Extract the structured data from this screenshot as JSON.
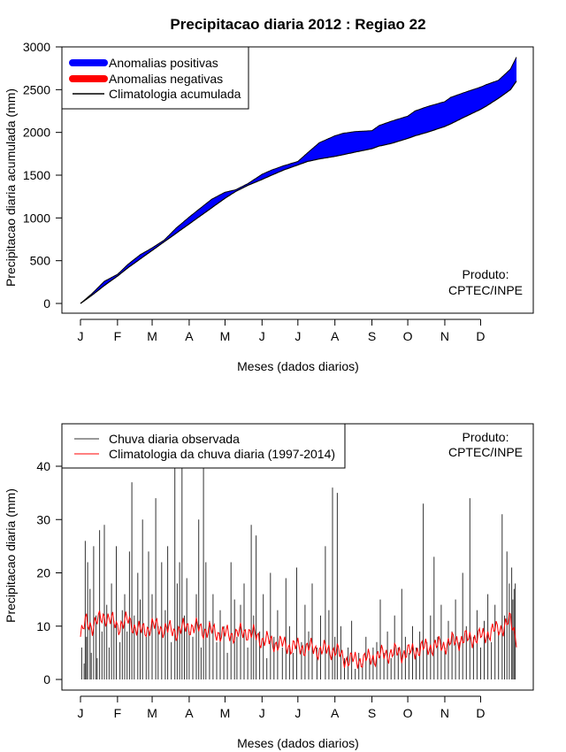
{
  "title": "Precipitacao diaria 2012 : Regiao 22",
  "chart_data": [
    {
      "type": "area",
      "name": "accumulated",
      "ylabel": "Precipitacao diaria acumulada (mm)",
      "xlabel": "Meses (dados diarios)",
      "ylim": [
        0,
        3000
      ],
      "yticks": [
        "0",
        "500",
        "1000",
        "1500",
        "2000",
        "2500",
        "3000"
      ],
      "months": [
        "J",
        "F",
        "M",
        "A",
        "M",
        "J",
        "J",
        "A",
        "S",
        "O",
        "N",
        "D"
      ],
      "legend": {
        "positive": "Anomalias positivas",
        "negative": "Anomalias negativas",
        "climatology": "Climatologia acumulada"
      },
      "product": [
        "Produto:",
        "CPTEC/INPE"
      ],
      "colors": {
        "positive": "#0000ff",
        "negative": "#ff0000",
        "climatology": "#000000"
      },
      "observed_accumulated": {
        "day": [
          0,
          10,
          20,
          31,
          40,
          50,
          60,
          70,
          80,
          91,
          100,
          110,
          121,
          130,
          140,
          152,
          160,
          170,
          182,
          190,
          200,
          213,
          220,
          230,
          244,
          250,
          260,
          274,
          280,
          290,
          305,
          310,
          320,
          335,
          340,
          350,
          360,
          365
        ],
        "value": [
          0,
          120,
          260,
          340,
          460,
          570,
          650,
          740,
          880,
          1010,
          1110,
          1220,
          1300,
          1330,
          1400,
          1510,
          1560,
          1610,
          1660,
          1760,
          1880,
          1960,
          1990,
          2010,
          2020,
          2080,
          2130,
          2190,
          2250,
          2300,
          2360,
          2410,
          2460,
          2530,
          2560,
          2610,
          2740,
          2880
        ]
      },
      "climatology_accumulated": {
        "day": [
          0,
          10,
          20,
          31,
          40,
          50,
          60,
          70,
          80,
          91,
          100,
          110,
          121,
          130,
          140,
          152,
          160,
          170,
          182,
          190,
          200,
          213,
          220,
          230,
          244,
          250,
          260,
          274,
          280,
          290,
          305,
          310,
          320,
          335,
          340,
          350,
          360,
          365
        ],
        "value": [
          0,
          100,
          210,
          320,
          420,
          520,
          620,
          720,
          820,
          930,
          1020,
          1120,
          1230,
          1310,
          1380,
          1450,
          1500,
          1560,
          1620,
          1660,
          1690,
          1720,
          1740,
          1770,
          1810,
          1840,
          1870,
          1930,
          1960,
          2000,
          2070,
          2100,
          2170,
          2270,
          2310,
          2400,
          2500,
          2600
        ]
      }
    },
    {
      "type": "bar-line",
      "name": "daily",
      "ylabel": "Precipitacao diaria (mm)",
      "xlabel": "Meses (dados diarios)",
      "ylim": [
        0,
        40
      ],
      "yticks": [
        "0",
        "10",
        "20",
        "30",
        "40"
      ],
      "months": [
        "J",
        "F",
        "M",
        "A",
        "M",
        "J",
        "J",
        "A",
        "S",
        "O",
        "N",
        "D"
      ],
      "legend": {
        "observed": "Chuva diaria observada",
        "climatology": "Climatologia da chuva diaria (1997-2014)"
      },
      "product": [
        "Produto:",
        "CPTEC/INPE"
      ],
      "colors": {
        "observed": "#333333",
        "climatology": "#ff0000"
      },
      "climatology_daily": {
        "day": [
          0,
          5,
          10,
          20,
          31,
          40,
          50,
          60,
          70,
          80,
          91,
          100,
          110,
          121,
          130,
          140,
          152,
          160,
          170,
          182,
          190,
          200,
          213,
          220,
          230,
          244,
          250,
          260,
          274,
          280,
          290,
          305,
          310,
          320,
          335,
          340,
          350,
          355,
          360,
          365
        ],
        "value": [
          8,
          11,
          10,
          12,
          10,
          11,
          9,
          10,
          9.5,
          9,
          10,
          9.5,
          9,
          8.5,
          8.5,
          9,
          7.5,
          7,
          6.5,
          6,
          6,
          5.5,
          5.5,
          4,
          3.5,
          4,
          4.5,
          5,
          5,
          5.5,
          6,
          6.5,
          7,
          7.5,
          8,
          8.5,
          9.5,
          10,
          11,
          8
        ]
      },
      "observed_daily": [
        {
          "day": 1,
          "value": 6
        },
        {
          "day": 3,
          "value": 3
        },
        {
          "day": 4,
          "value": 26
        },
        {
          "day": 5,
          "value": 8
        },
        {
          "day": 6,
          "value": 22
        },
        {
          "day": 8,
          "value": 17
        },
        {
          "day": 9,
          "value": 5
        },
        {
          "day": 11,
          "value": 25
        },
        {
          "day": 13,
          "value": 12
        },
        {
          "day": 14,
          "value": 4
        },
        {
          "day": 16,
          "value": 28
        },
        {
          "day": 18,
          "value": 9
        },
        {
          "day": 20,
          "value": 29
        },
        {
          "day": 22,
          "value": 14
        },
        {
          "day": 24,
          "value": 6
        },
        {
          "day": 26,
          "value": 18
        },
        {
          "day": 28,
          "value": 11
        },
        {
          "day": 30,
          "value": 25
        },
        {
          "day": 33,
          "value": 7
        },
        {
          "day": 35,
          "value": 13
        },
        {
          "day": 37,
          "value": 16
        },
        {
          "day": 39,
          "value": 9
        },
        {
          "day": 41,
          "value": 24
        },
        {
          "day": 43,
          "value": 37
        },
        {
          "day": 45,
          "value": 12
        },
        {
          "day": 48,
          "value": 20
        },
        {
          "day": 50,
          "value": 15
        },
        {
          "day": 52,
          "value": 30
        },
        {
          "day": 55,
          "value": 8
        },
        {
          "day": 57,
          "value": 24
        },
        {
          "day": 60,
          "value": 16
        },
        {
          "day": 63,
          "value": 34
        },
        {
          "day": 65,
          "value": 10
        },
        {
          "day": 68,
          "value": 22
        },
        {
          "day": 71,
          "value": 13
        },
        {
          "day": 73,
          "value": 25
        },
        {
          "day": 76,
          "value": 7
        },
        {
          "day": 79,
          "value": 40
        },
        {
          "day": 81,
          "value": 18
        },
        {
          "day": 83,
          "value": 22
        },
        {
          "day": 85,
          "value": 40
        },
        {
          "day": 87,
          "value": 12
        },
        {
          "day": 89,
          "value": 19
        },
        {
          "day": 91,
          "value": 9
        },
        {
          "day": 94,
          "value": 8
        },
        {
          "day": 97,
          "value": 16
        },
        {
          "day": 99,
          "value": 30
        },
        {
          "day": 101,
          "value": 6
        },
        {
          "day": 103,
          "value": 40
        },
        {
          "day": 105,
          "value": 22
        },
        {
          "day": 108,
          "value": 11
        },
        {
          "day": 111,
          "value": 16
        },
        {
          "day": 114,
          "value": 7
        },
        {
          "day": 117,
          "value": 13
        },
        {
          "day": 120,
          "value": 10
        },
        {
          "day": 123,
          "value": 5
        },
        {
          "day": 126,
          "value": 22
        },
        {
          "day": 129,
          "value": 15
        },
        {
          "day": 131,
          "value": 8
        },
        {
          "day": 134,
          "value": 14
        },
        {
          "day": 137,
          "value": 18
        },
        {
          "day": 140,
          "value": 6
        },
        {
          "day": 143,
          "value": 29
        },
        {
          "day": 145,
          "value": 12
        },
        {
          "day": 147,
          "value": 27
        },
        {
          "day": 150,
          "value": 9
        },
        {
          "day": 153,
          "value": 16
        },
        {
          "day": 156,
          "value": 4
        },
        {
          "day": 159,
          "value": 20
        },
        {
          "day": 162,
          "value": 8
        },
        {
          "day": 165,
          "value": 13
        },
        {
          "day": 169,
          "value": 6
        },
        {
          "day": 172,
          "value": 19
        },
        {
          "day": 175,
          "value": 10
        },
        {
          "day": 178,
          "value": 5
        },
        {
          "day": 181,
          "value": 21
        },
        {
          "day": 185,
          "value": 7
        },
        {
          "day": 188,
          "value": 14
        },
        {
          "day": 191,
          "value": 9
        },
        {
          "day": 194,
          "value": 18
        },
        {
          "day": 198,
          "value": 6
        },
        {
          "day": 201,
          "value": 12
        },
        {
          "day": 205,
          "value": 25
        },
        {
          "day": 208,
          "value": 13
        },
        {
          "day": 211,
          "value": 36
        },
        {
          "day": 213,
          "value": 8
        },
        {
          "day": 215,
          "value": 35
        },
        {
          "day": 218,
          "value": 10
        },
        {
          "day": 221,
          "value": 4
        },
        {
          "day": 224,
          "value": 6
        },
        {
          "day": 227,
          "value": 11
        },
        {
          "day": 230,
          "value": 2
        },
        {
          "day": 233,
          "value": 5
        },
        {
          "day": 236,
          "value": 3
        },
        {
          "day": 239,
          "value": 8
        },
        {
          "day": 242,
          "value": 4
        },
        {
          "day": 245,
          "value": 6
        },
        {
          "day": 248,
          "value": 7
        },
        {
          "day": 251,
          "value": 15
        },
        {
          "day": 254,
          "value": 5
        },
        {
          "day": 257,
          "value": 9
        },
        {
          "day": 260,
          "value": 4
        },
        {
          "day": 263,
          "value": 12
        },
        {
          "day": 266,
          "value": 6
        },
        {
          "day": 269,
          "value": 17
        },
        {
          "day": 272,
          "value": 8
        },
        {
          "day": 275,
          "value": 5
        },
        {
          "day": 278,
          "value": 10
        },
        {
          "day": 281,
          "value": 6
        },
        {
          "day": 284,
          "value": 9
        },
        {
          "day": 287,
          "value": 33
        },
        {
          "day": 290,
          "value": 7
        },
        {
          "day": 293,
          "value": 12
        },
        {
          "day": 296,
          "value": 23
        },
        {
          "day": 299,
          "value": 8
        },
        {
          "day": 302,
          "value": 14
        },
        {
          "day": 305,
          "value": 6
        },
        {
          "day": 308,
          "value": 11
        },
        {
          "day": 311,
          "value": 9
        },
        {
          "day": 314,
          "value": 15
        },
        {
          "day": 317,
          "value": 7
        },
        {
          "day": 320,
          "value": 20
        },
        {
          "day": 323,
          "value": 10
        },
        {
          "day": 326,
          "value": 34
        },
        {
          "day": 329,
          "value": 8
        },
        {
          "day": 332,
          "value": 13
        },
        {
          "day": 335,
          "value": 6
        },
        {
          "day": 338,
          "value": 11
        },
        {
          "day": 341,
          "value": 16
        },
        {
          "day": 344,
          "value": 7
        },
        {
          "day": 347,
          "value": 14
        },
        {
          "day": 350,
          "value": 9
        },
        {
          "day": 353,
          "value": 31
        },
        {
          "day": 355,
          "value": 12
        },
        {
          "day": 357,
          "value": 24
        },
        {
          "day": 359,
          "value": 18
        },
        {
          "day": 361,
          "value": 21
        },
        {
          "day": 362,
          "value": 15
        },
        {
          "day": 363,
          "value": 17
        },
        {
          "day": 364,
          "value": 18
        }
      ]
    }
  ]
}
